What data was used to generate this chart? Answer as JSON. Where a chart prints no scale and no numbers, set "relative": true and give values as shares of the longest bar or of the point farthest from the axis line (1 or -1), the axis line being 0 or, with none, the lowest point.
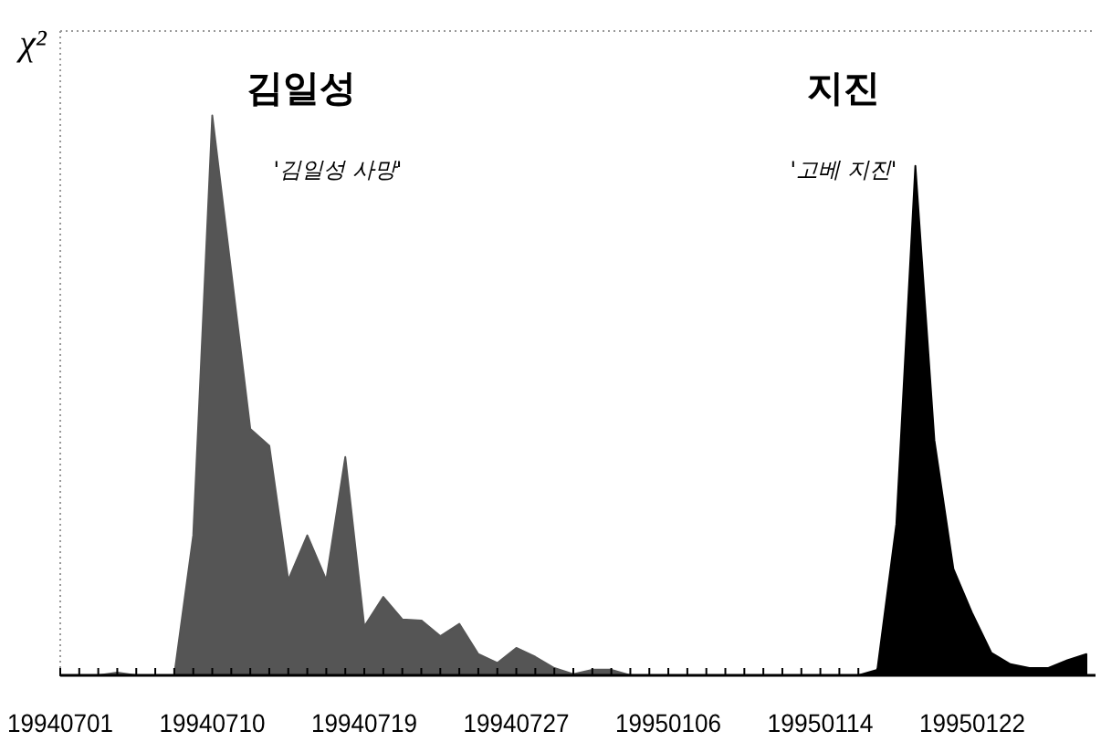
{
  "chart_data": {
    "type": "area",
    "relative": true,
    "ylabel": "χ²",
    "categories": [
      "19940701",
      null,
      null,
      null,
      null,
      null,
      null,
      null,
      "19940710",
      null,
      null,
      null,
      null,
      null,
      null,
      null,
      "19940719",
      null,
      null,
      null,
      null,
      null,
      null,
      null,
      "19940727",
      null,
      null,
      null,
      null,
      null,
      null,
      null,
      "19950106",
      null,
      null,
      null,
      null,
      null,
      null,
      null,
      "19950114",
      null,
      null,
      null,
      null,
      null,
      null,
      null,
      "19950122",
      null,
      null,
      null,
      null,
      null,
      null
    ],
    "series": [
      {
        "color": "#555555",
        "values": [
          0,
          0,
          0,
          0.005,
          0,
          0,
          0,
          0.25,
          1,
          0.72,
          0.44,
          0.41,
          0.17,
          0.25,
          0.17,
          0.39,
          0.087,
          0.14,
          0.1,
          0.098,
          0.07,
          0.092,
          0.038,
          0.022,
          0.049,
          0.033,
          0.013,
          0.002,
          0.01,
          0.01,
          0,
          0,
          0,
          0,
          0,
          0,
          0,
          0,
          0,
          0,
          0,
          0,
          0,
          0,
          0,
          0,
          0,
          0,
          0,
          0,
          0,
          0,
          0,
          0,
          0
        ]
      },
      {
        "color": "#000000",
        "values": [
          0,
          0,
          0,
          0,
          0,
          0,
          0,
          0,
          0,
          0,
          0,
          0,
          0,
          0,
          0,
          0,
          0,
          0,
          0,
          0,
          0,
          0,
          0,
          0,
          0,
          0,
          0,
          0,
          0,
          0,
          0,
          0,
          0,
          0,
          0,
          0,
          0,
          0,
          0,
          0,
          0,
          0,
          0,
          0.01,
          0.27,
          0.91,
          0.42,
          0.19,
          0.11,
          0.04,
          0.02,
          0.013,
          0.013,
          0.027,
          0.038
        ]
      }
    ],
    "annotations": [
      "김일성",
      "'김일성 사망'",
      "지진",
      "'고베 지진'"
    ]
  }
}
